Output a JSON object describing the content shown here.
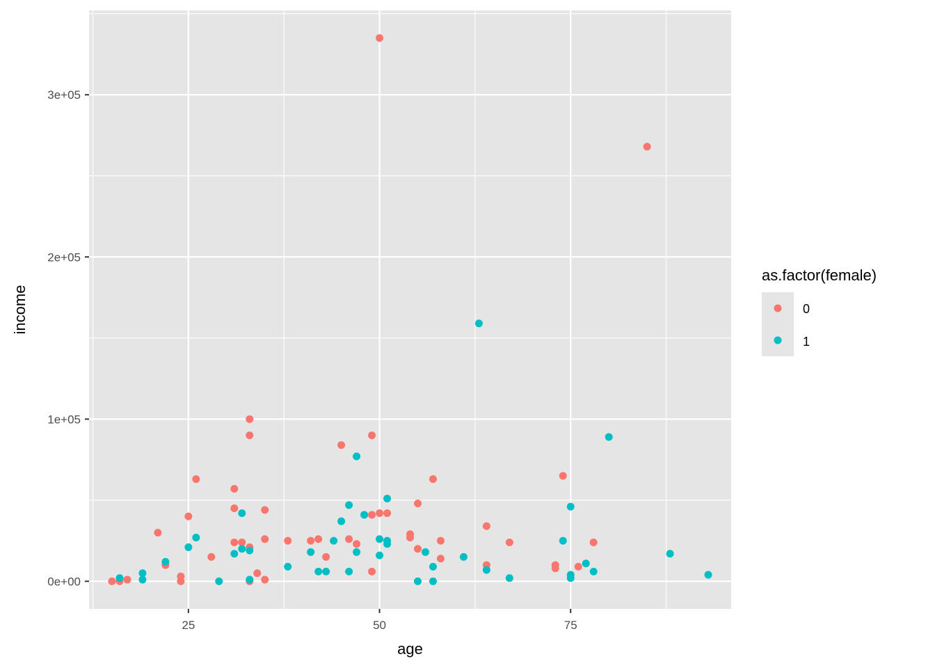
{
  "chart_data": {
    "type": "scatter",
    "title": "",
    "xlabel": "age",
    "ylabel": "income",
    "xlim": [
      12,
      96
    ],
    "ylim": [
      -17000,
      352000
    ],
    "x_ticks": [
      25,
      50,
      75
    ],
    "x_tick_labels": [
      "25",
      "50",
      "75"
    ],
    "y_ticks": [
      0,
      100000,
      200000,
      300000
    ],
    "y_tick_labels": [
      "0e+00",
      "1e+05",
      "2e+05",
      "3e+05"
    ],
    "grid": true,
    "legend": {
      "title": "as.factor(female)",
      "position": "right",
      "entries": [
        "0",
        "1"
      ]
    },
    "colors": {
      "0": "#F8766D",
      "1": "#00BFC4",
      "panel": "#E5E5E5",
      "grid": "#FFFFFF"
    },
    "series": [
      {
        "name": "0",
        "x": [
          15,
          16,
          17,
          21,
          22,
          24,
          24,
          25,
          26,
          28,
          31,
          31,
          31,
          32,
          33,
          33,
          33,
          33,
          34,
          35,
          35,
          35,
          38,
          41,
          42,
          43,
          45,
          46,
          47,
          49,
          49,
          49,
          50,
          50,
          51,
          54,
          54,
          55,
          55,
          57,
          58,
          58,
          64,
          64,
          67,
          73,
          73,
          74,
          76,
          78,
          85
        ],
        "y": [
          0,
          0,
          1000,
          30000,
          10000,
          3000,
          0,
          40000,
          63000,
          15000,
          57000,
          45000,
          24000,
          24000,
          100000,
          90000,
          21000,
          0,
          5000,
          44000,
          26000,
          1000,
          25000,
          25000,
          26000,
          15000,
          84000,
          26000,
          23000,
          90000,
          41000,
          6000,
          335000,
          42000,
          42000,
          29000,
          27000,
          20000,
          48000,
          63000,
          25000,
          14000,
          34000,
          10000,
          24000,
          10000,
          8000,
          65000,
          9000,
          24000,
          268000
        ]
      },
      {
        "name": "1",
        "x": [
          16,
          19,
          19,
          22,
          25,
          26,
          29,
          31,
          32,
          32,
          33,
          33,
          38,
          41,
          42,
          43,
          44,
          45,
          46,
          46,
          47,
          47,
          48,
          50,
          50,
          51,
          51,
          51,
          55,
          56,
          57,
          57,
          61,
          63,
          64,
          67,
          74,
          75,
          75,
          75,
          77,
          78,
          80,
          88,
          93
        ],
        "y": [
          2000,
          5000,
          1000,
          12000,
          21000,
          27000,
          0,
          17000,
          42000,
          20000,
          19000,
          1000,
          9000,
          18000,
          6000,
          6000,
          25000,
          37000,
          47000,
          6000,
          77000,
          18000,
          41000,
          26000,
          16000,
          51000,
          25000,
          23000,
          0,
          18000,
          9000,
          0,
          15000,
          159000,
          7000,
          2000,
          25000,
          46000,
          4000,
          2000,
          11000,
          6000,
          89000,
          17000,
          4000
        ]
      }
    ]
  }
}
